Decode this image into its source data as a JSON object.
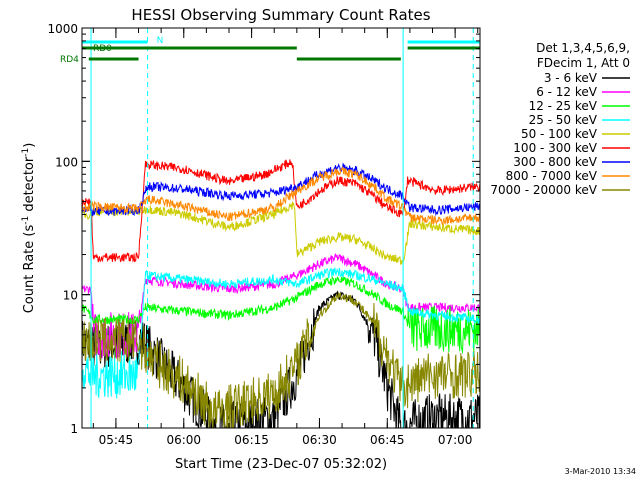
{
  "chart_data": {
    "type": "line",
    "title": "HESSI Observing Summary Count Rates",
    "xlabel": "Start Time (23-Dec-07 05:32:02)",
    "ylabel_main": "Count Rate (s",
    "ylabel_sup1": "-1",
    "ylabel_mid": " detector",
    "ylabel_sup2": "-1",
    "ylabel_end": ")",
    "yscale": "log",
    "ylim": [
      1,
      1000
    ],
    "xlim_minutes": [
      5.5,
      93.5
    ],
    "x_ticks": [
      {
        "label": "05:45",
        "m": 13
      },
      {
        "label": "06:00",
        "m": 28
      },
      {
        "label": "06:15",
        "m": 43
      },
      {
        "label": "06:30",
        "m": 58
      },
      {
        "label": "06:45",
        "m": 73
      },
      {
        "label": "07:00",
        "m": 88
      }
    ],
    "y_ticks": [
      {
        "label": "1",
        "v": 1
      },
      {
        "label": "10",
        "v": 10
      },
      {
        "label": "100",
        "v": 100
      },
      {
        "label": "1000",
        "v": 1000
      }
    ],
    "legend_header": [
      "Det 1,3,4,5,6,9,",
      "FDecim 1, Att 0"
    ],
    "legend_placement": "right",
    "footer_date": "3-Mar-2010 13:34",
    "flags": [
      {
        "name": "N",
        "color": "#00ffff",
        "label": "N",
        "segments": [
          [
            5.5,
            20
          ],
          [
            77.5,
            93.5
          ]
        ]
      },
      {
        "name": "RD0",
        "color": "#007700",
        "label": "RD0",
        "segments": [
          [
            5.5,
            20
          ],
          [
            20,
            53
          ],
          [
            77.5,
            93.5
          ]
        ]
      },
      {
        "name": "RD4",
        "color": "#007700",
        "label": "RD4",
        "segments": [
          [
            7,
            18
          ],
          [
            53,
            76
          ]
        ]
      }
    ],
    "vlines": [
      {
        "m": 7.5,
        "color": "#00ffff",
        "style": "solid"
      },
      {
        "m": 20,
        "color": "#00ffff",
        "style": "dashed"
      },
      {
        "m": 76.5,
        "color": "#00ffff",
        "style": "solid"
      },
      {
        "m": 92,
        "color": "#00ffff",
        "style": "dashed"
      }
    ],
    "series": [
      {
        "name": "3 - 6 keV",
        "color": "#000000",
        "x": [
          5.5,
          8,
          18,
          19,
          28,
          35,
          48,
          53,
          58,
          62,
          66,
          70,
          73,
          76,
          82,
          93.5
        ],
        "y": [
          4.5,
          4,
          4.5,
          4.5,
          2,
          1,
          1.2,
          2.5,
          8,
          10,
          9,
          5,
          2,
          1,
          1.2,
          1.2
        ]
      },
      {
        "name": "6 - 12 keV",
        "color": "#ff00ff",
        "x": [
          5.5,
          7.5,
          8,
          18,
          19.5,
          28,
          38,
          48,
          53,
          58,
          62,
          66,
          70,
          73,
          76.5,
          77.5,
          84,
          93.5
        ],
        "y": [
          11,
          11,
          5,
          5,
          13,
          12,
          11,
          12,
          14,
          17,
          19,
          17,
          14,
          12,
          11,
          8,
          8,
          8
        ]
      },
      {
        "name": "12 - 25 keV",
        "color": "#00ff00",
        "x": [
          5.5,
          7.5,
          8,
          18,
          19.5,
          28,
          38,
          48,
          53,
          58,
          62,
          66,
          70,
          73,
          76.5,
          78,
          84,
          93.5
        ],
        "y": [
          8,
          7,
          6.5,
          6.5,
          8,
          7.5,
          7,
          8,
          9.5,
          12,
          13,
          12,
          10,
          8.5,
          7.5,
          5.5,
          5.5,
          5.5
        ]
      },
      {
        "name": "25 - 50 keV",
        "color": "#00ffff",
        "x": [
          5.5,
          7.5,
          8,
          18,
          19.5,
          28,
          38,
          48,
          53,
          58,
          62,
          66,
          70,
          73,
          76.5,
          78,
          84,
          93.5
        ],
        "y": [
          3,
          2.5,
          2.5,
          2.5,
          14,
          13,
          12,
          13,
          12,
          14,
          15,
          14,
          13,
          12,
          11,
          7.5,
          7,
          6.5
        ]
      },
      {
        "name": "50 - 100 keV",
        "color": "#cccc00",
        "x": [
          5.5,
          7.5,
          8,
          18,
          20,
          28,
          38,
          48,
          52.5,
          53,
          58,
          62,
          66,
          70,
          73,
          76.5,
          78,
          84,
          93.5
        ],
        "y": [
          40,
          40,
          42,
          42,
          44,
          40,
          32,
          40,
          48,
          20,
          25,
          27,
          26,
          22,
          19,
          18,
          34,
          32,
          30
        ]
      },
      {
        "name": "100 - 300 keV",
        "color": "#ff0000",
        "x": [
          5.5,
          7.5,
          8,
          18,
          19.5,
          28,
          38,
          46,
          52,
          53,
          58,
          62,
          66,
          70,
          73,
          76.5,
          77.5,
          84,
          93.5
        ],
        "y": [
          50,
          50,
          19,
          19,
          95,
          88,
          70,
          80,
          100,
          45,
          60,
          72,
          68,
          55,
          45,
          40,
          72,
          60,
          65
        ]
      },
      {
        "name": "300 - 800 keV",
        "color": "#0000ff",
        "x": [
          5.5,
          8,
          18,
          20,
          28,
          38,
          48,
          53,
          58,
          62,
          66,
          70,
          73,
          76.5,
          78,
          84,
          93.5
        ],
        "y": [
          45,
          42,
          43,
          65,
          62,
          55,
          58,
          65,
          80,
          90,
          85,
          72,
          62,
          55,
          45,
          43,
          46
        ]
      },
      {
        "name": "800 - 7000 keV",
        "color": "#ff8800",
        "x": [
          5.5,
          8,
          18,
          20,
          28,
          38,
          48,
          53,
          58,
          62,
          66,
          70,
          73,
          76.5,
          78,
          84,
          93.5
        ],
        "y": [
          44,
          46,
          44,
          52,
          46,
          38,
          45,
          60,
          75,
          85,
          80,
          65,
          52,
          45,
          38,
          36,
          38
        ]
      },
      {
        "name": "7000 - 20000 keV",
        "color": "#888800",
        "x": [
          5.5,
          8,
          18,
          20,
          28,
          35,
          48,
          53,
          58,
          62,
          66,
          70,
          73,
          76,
          82,
          93.5
        ],
        "y": [
          4.5,
          4.5,
          4.5,
          3.5,
          2.2,
          1.3,
          1.8,
          3,
          7,
          10,
          9,
          6,
          3.5,
          2,
          2.5,
          2.5
        ]
      }
    ]
  }
}
